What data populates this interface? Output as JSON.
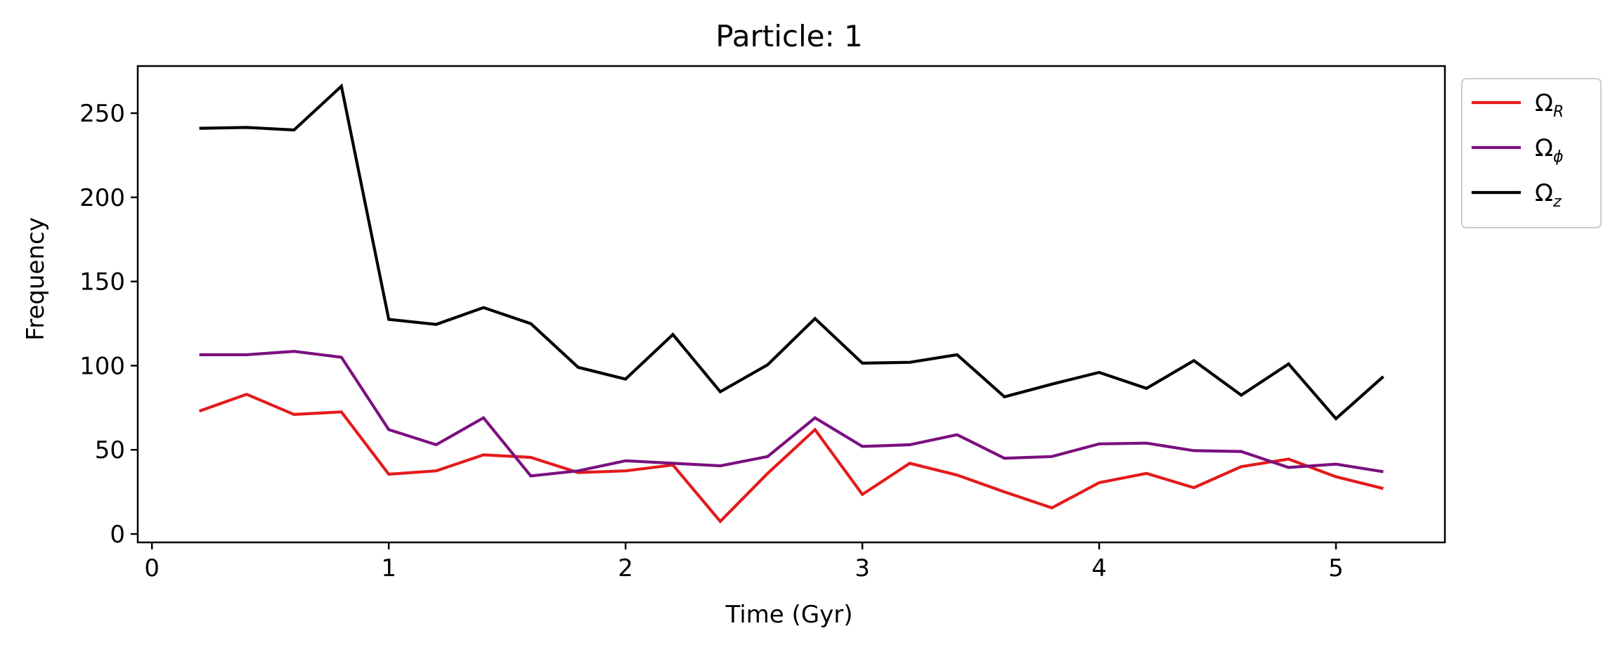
{
  "chart_data": {
    "type": "line",
    "title": "Particle: 1",
    "xlabel": "Time (Gyr)",
    "ylabel": "Frequency",
    "xlim": [
      -0.06,
      5.46
    ],
    "ylim": [
      -5,
      278
    ],
    "xticks": [
      0,
      1,
      2,
      3,
      4,
      5
    ],
    "yticks": [
      0,
      50,
      100,
      150,
      200,
      250
    ],
    "grid": false,
    "legend": "outside-top-right",
    "x": [
      0.2,
      0.4,
      0.6,
      0.8,
      1.0,
      1.2,
      1.4,
      1.6,
      1.8,
      2.0,
      2.2,
      2.4,
      2.6,
      2.8,
      3.0,
      3.2,
      3.4,
      3.6,
      3.8,
      4.0,
      4.2,
      4.4,
      4.6,
      4.8,
      5.0,
      5.2
    ],
    "series": [
      {
        "name": "Ω",
        "subscript": "R",
        "color": "#e41a1c",
        "values": [
          73,
          83,
          71,
          72.5,
          35.5,
          37.5,
          47,
          45.5,
          36.5,
          37.5,
          41,
          7.5,
          36,
          62,
          23.5,
          42,
          35,
          25,
          15.5,
          30.5,
          36,
          27.5,
          40,
          44.5,
          34,
          27
        ]
      },
      {
        "name": "Ω",
        "subscript": "ϕ",
        "color": "#7b1080",
        "values": [
          106.5,
          106.5,
          108.5,
          105,
          62,
          53,
          69,
          34.5,
          37.5,
          43.5,
          42,
          40.5,
          46,
          69,
          52,
          53,
          59,
          45,
          46,
          53.5,
          54,
          49.5,
          49,
          39.5,
          41.5,
          37
        ]
      },
      {
        "name": "Ω",
        "subscript": "z",
        "color": "#000000",
        "values": [
          241,
          241.5,
          240,
          266,
          127.5,
          124.5,
          134.5,
          125,
          99,
          92,
          118.5,
          84.5,
          100.5,
          128,
          101.5,
          102,
          106.5,
          81.5,
          89,
          96,
          86.5,
          103,
          82.5,
          101,
          68.5,
          93.5
        ]
      }
    ]
  }
}
